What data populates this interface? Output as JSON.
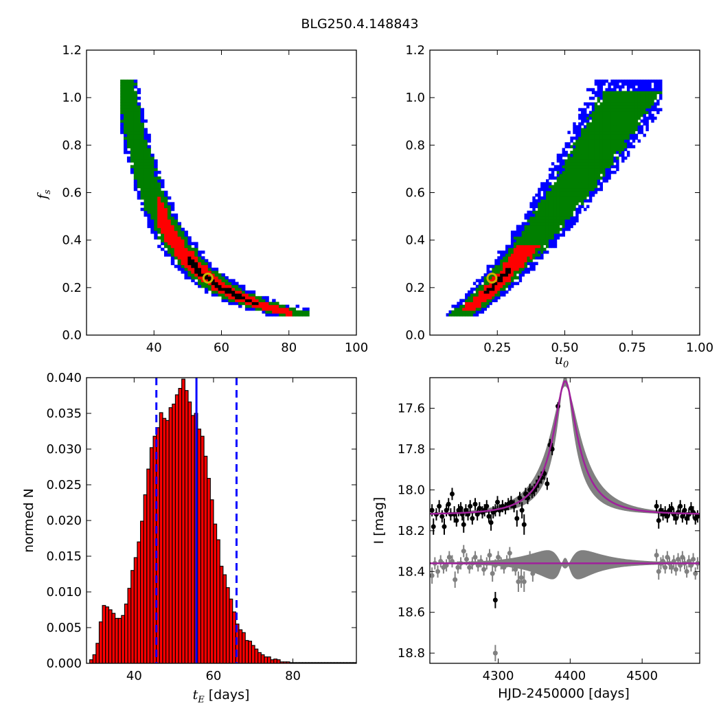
{
  "figure_title": "BLG250.4.148843",
  "colors": {
    "blue": "#0000ff",
    "green": "#007f00",
    "red": "#ff0000",
    "black": "#000000",
    "gold": "#c8b400",
    "magenta": "#a0209c",
    "gray": "#808080"
  },
  "chart_data": [
    {
      "id": "fs-vs-tE",
      "type": "heatmap",
      "xlim": [
        20,
        100
      ],
      "ylim": [
        0.0,
        1.2
      ],
      "xticks": [
        "40",
        "60",
        "80",
        "100"
      ],
      "yticks": [
        "0.0",
        "0.2",
        "0.4",
        "0.6",
        "0.8",
        "1.0",
        "1.2"
      ],
      "xlabel": "",
      "ylabel_base": "f",
      "ylabel_sub": "s",
      "levels": [
        "black",
        "red",
        "green",
        "blue"
      ],
      "curve_relation": "fs * (tE/56)^2.57 = 0.24",
      "best_fit": {
        "x": 56,
        "y": 0.24
      }
    },
    {
      "id": "fs-vs-u0",
      "type": "heatmap",
      "xlim": [
        0.0,
        1.0
      ],
      "ylim": [
        0.0,
        1.2
      ],
      "xticks": [
        "0.25",
        "0.50",
        "0.75",
        "1.00"
      ],
      "yticks": [
        "0.0",
        "0.2",
        "0.4",
        "0.6",
        "0.8",
        "1.0",
        "1.2"
      ],
      "xlabel_base": "u",
      "xlabel_sub": "0",
      "levels": [
        "black",
        "red",
        "green",
        "blue"
      ],
      "best_fit": {
        "x": 0.23,
        "y": 0.24
      }
    },
    {
      "id": "tE-histogram",
      "type": "bar",
      "xlim": [
        28,
        96
      ],
      "ylim": [
        0.0,
        0.04
      ],
      "xticks": [
        "40",
        "60",
        "80"
      ],
      "yticks": [
        "0.000",
        "0.005",
        "0.010",
        "0.015",
        "0.020",
        "0.025",
        "0.030",
        "0.035",
        "0.040"
      ],
      "ylabel": "normed N",
      "xlabel_base": "t",
      "xlabel_sub": "E",
      "xlabel_unit": " [days]",
      "bin_start": 28.8,
      "bin_width": 0.8,
      "values": [
        0.0005,
        0.0012,
        0.0028,
        0.0058,
        0.0081,
        0.0079,
        0.0075,
        0.007,
        0.0063,
        0.0063,
        0.0067,
        0.0083,
        0.0105,
        0.013,
        0.0148,
        0.017,
        0.0199,
        0.0236,
        0.0272,
        0.0302,
        0.0318,
        0.033,
        0.0351,
        0.0343,
        0.034,
        0.0358,
        0.0363,
        0.0376,
        0.0385,
        0.0398,
        0.0382,
        0.0366,
        0.0347,
        0.035,
        0.0328,
        0.0318,
        0.029,
        0.0259,
        0.0229,
        0.0195,
        0.0173,
        0.0136,
        0.0124,
        0.0106,
        0.009,
        0.0072,
        0.0055,
        0.0047,
        0.0043,
        0.0032,
        0.0031,
        0.0025,
        0.002,
        0.0015,
        0.0012,
        0.0009,
        0.0009,
        0.0005,
        0.0006,
        0.0005,
        0.0002,
        0.0002,
        0.0002,
        0.0001,
        0.0001,
        0.0001,
        0.0001,
        0.0001,
        0.0001,
        0.0001,
        0.0001,
        0.0001,
        0.0001,
        0.0001,
        0.0001,
        0.0001,
        0.0001,
        0.0001,
        0.0001,
        0.0001,
        0.0001,
        0.0001,
        0.0001,
        0.0001,
        0.0001
      ],
      "vlines": [
        {
          "x": 45.6,
          "style": "dashed"
        },
        {
          "x": 55.7,
          "style": "solid"
        },
        {
          "x": 65.8,
          "style": "dashed"
        }
      ]
    },
    {
      "id": "light-curve",
      "type": "scatter",
      "xlim": [
        4205,
        4580
      ],
      "ylim": [
        18.85,
        17.45
      ],
      "xticks": [
        "4300",
        "4400",
        "4500"
      ],
      "yticks": [
        "17.6",
        "17.8",
        "18.0",
        "18.2",
        "18.4",
        "18.6",
        "18.8"
      ],
      "xlabel": "HJD-2450000 [days]",
      "ylabel": "I [mag]",
      "model": {
        "t0": 4393,
        "tE": 56,
        "u0": 0.23,
        "fs": 0.24,
        "baseline": 18.12
      },
      "residual_baseline": 18.36,
      "black_points": [
        [
          4208,
          18.1,
          0.03
        ],
        [
          4210,
          18.18,
          0.04
        ],
        [
          4214,
          18.12,
          0.03
        ],
        [
          4218,
          18.08,
          0.03
        ],
        [
          4222,
          18.13,
          0.03
        ],
        [
          4225,
          18.18,
          0.04
        ],
        [
          4228,
          18.1,
          0.03
        ],
        [
          4231,
          18.07,
          0.03
        ],
        [
          4234,
          18.12,
          0.03
        ],
        [
          4236,
          18.02,
          0.03
        ],
        [
          4239,
          18.12,
          0.04
        ],
        [
          4242,
          18.15,
          0.03
        ],
        [
          4245,
          18.1,
          0.03
        ],
        [
          4248,
          18.09,
          0.03
        ],
        [
          4250,
          18.12,
          0.03
        ],
        [
          4252,
          18.17,
          0.04
        ],
        [
          4255,
          18.1,
          0.03
        ],
        [
          4258,
          18.12,
          0.03
        ],
        [
          4261,
          18.08,
          0.03
        ],
        [
          4264,
          18.14,
          0.03
        ],
        [
          4268,
          18.07,
          0.03
        ],
        [
          4271,
          18.12,
          0.03
        ],
        [
          4274,
          18.09,
          0.03
        ],
        [
          4278,
          18.11,
          0.03
        ],
        [
          4281,
          18.1,
          0.03
        ],
        [
          4284,
          18.08,
          0.03
        ],
        [
          4287,
          18.13,
          0.03
        ],
        [
          4290,
          18.16,
          0.04
        ],
        [
          4293,
          18.11,
          0.03
        ],
        [
          4296,
          18.1,
          0.03
        ],
        [
          4299,
          18.06,
          0.03
        ],
        [
          4302,
          18.1,
          0.03
        ],
        [
          4306,
          18.08,
          0.03
        ],
        [
          4310,
          18.09,
          0.03
        ],
        [
          4314,
          18.07,
          0.03
        ],
        [
          4318,
          18.06,
          0.03
        ],
        [
          4322,
          18.08,
          0.03
        ],
        [
          4326,
          18.14,
          0.04
        ],
        [
          4330,
          18.04,
          0.03
        ],
        [
          4333,
          18.1,
          0.04
        ],
        [
          4336,
          18.17,
          0.05
        ],
        [
          4338,
          18.02,
          0.03
        ],
        [
          4341,
          18.04,
          0.03
        ],
        [
          4344,
          18.0,
          0.03
        ],
        [
          4347,
          18.01,
          0.03
        ],
        [
          4350,
          18.0,
          0.03
        ],
        [
          4353,
          17.98,
          0.03
        ],
        [
          4356,
          17.96,
          0.03
        ],
        [
          4360,
          17.94,
          0.03
        ],
        [
          4364,
          17.92,
          0.03
        ],
        [
          4368,
          17.97,
          0.03
        ],
        [
          4372,
          17.78,
          0.03
        ],
        [
          4375,
          17.8,
          0.03
        ],
        [
          4383,
          17.59,
          0.02
        ],
        [
          4296,
          18.54,
          0.04
        ],
        [
          4520,
          18.08,
          0.03
        ],
        [
          4523,
          18.15,
          0.04
        ],
        [
          4526,
          18.1,
          0.03
        ],
        [
          4529,
          18.12,
          0.03
        ],
        [
          4532,
          18.11,
          0.03
        ],
        [
          4535,
          18.13,
          0.03
        ],
        [
          4538,
          18.1,
          0.03
        ],
        [
          4541,
          18.09,
          0.03
        ],
        [
          4544,
          18.12,
          0.03
        ],
        [
          4547,
          18.14,
          0.03
        ],
        [
          4550,
          18.11,
          0.03
        ],
        [
          4553,
          18.08,
          0.03
        ],
        [
          4556,
          18.13,
          0.03
        ],
        [
          4559,
          18.1,
          0.03
        ],
        [
          4562,
          18.14,
          0.03
        ],
        [
          4565,
          18.12,
          0.03
        ],
        [
          4568,
          18.09,
          0.03
        ],
        [
          4571,
          18.11,
          0.03
        ],
        [
          4574,
          18.14,
          0.03
        ],
        [
          4577,
          18.13,
          0.03
        ]
      ],
      "gray_points": [
        [
          4208,
          18.42,
          0.04
        ],
        [
          4212,
          18.36,
          0.03
        ],
        [
          4216,
          18.4,
          0.03
        ],
        [
          4220,
          18.35,
          0.03
        ],
        [
          4224,
          18.38,
          0.03
        ],
        [
          4228,
          18.37,
          0.03
        ],
        [
          4232,
          18.33,
          0.03
        ],
        [
          4236,
          18.35,
          0.03
        ],
        [
          4240,
          18.44,
          0.04
        ],
        [
          4244,
          18.38,
          0.03
        ],
        [
          4248,
          18.36,
          0.03
        ],
        [
          4252,
          18.3,
          0.03
        ],
        [
          4256,
          18.34,
          0.03
        ],
        [
          4260,
          18.38,
          0.03
        ],
        [
          4264,
          18.36,
          0.03
        ],
        [
          4268,
          18.33,
          0.03
        ],
        [
          4272,
          18.37,
          0.03
        ],
        [
          4276,
          18.35,
          0.03
        ],
        [
          4280,
          18.39,
          0.03
        ],
        [
          4284,
          18.36,
          0.03
        ],
        [
          4288,
          18.32,
          0.03
        ],
        [
          4292,
          18.41,
          0.04
        ],
        [
          4296,
          18.37,
          0.03
        ],
        [
          4300,
          18.33,
          0.03
        ],
        [
          4304,
          18.36,
          0.03
        ],
        [
          4308,
          18.38,
          0.03
        ],
        [
          4312,
          18.35,
          0.03
        ],
        [
          4316,
          18.31,
          0.03
        ],
        [
          4320,
          18.37,
          0.03
        ],
        [
          4324,
          18.39,
          0.03
        ],
        [
          4328,
          18.45,
          0.05
        ],
        [
          4332,
          18.43,
          0.05
        ],
        [
          4336,
          18.45,
          0.05
        ],
        [
          4340,
          18.36,
          0.03
        ],
        [
          4344,
          18.33,
          0.03
        ],
        [
          4348,
          18.41,
          0.04
        ],
        [
          4352,
          18.37,
          0.03
        ],
        [
          4356,
          18.35,
          0.03
        ],
        [
          4296,
          18.8,
          0.04
        ],
        [
          4520,
          18.32,
          0.03
        ],
        [
          4523,
          18.4,
          0.04
        ],
        [
          4526,
          18.36,
          0.03
        ],
        [
          4529,
          18.35,
          0.03
        ],
        [
          4532,
          18.38,
          0.03
        ],
        [
          4535,
          18.33,
          0.03
        ],
        [
          4538,
          18.36,
          0.03
        ],
        [
          4541,
          18.38,
          0.03
        ],
        [
          4544,
          18.35,
          0.03
        ],
        [
          4547,
          18.39,
          0.03
        ],
        [
          4550,
          18.34,
          0.03
        ],
        [
          4553,
          18.37,
          0.03
        ],
        [
          4556,
          18.33,
          0.03
        ],
        [
          4559,
          18.36,
          0.03
        ],
        [
          4562,
          18.4,
          0.03
        ],
        [
          4565,
          18.35,
          0.03
        ],
        [
          4568,
          18.37,
          0.03
        ],
        [
          4571,
          18.34,
          0.03
        ],
        [
          4574,
          18.41,
          0.03
        ],
        [
          4577,
          18.36,
          0.03
        ]
      ]
    }
  ]
}
